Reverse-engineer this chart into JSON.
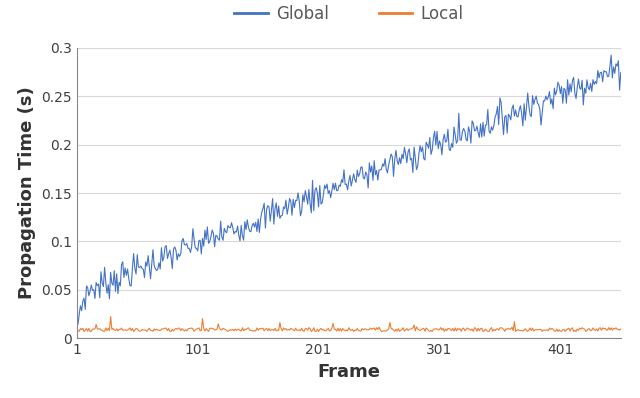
{
  "title": "",
  "xlabel": "Frame",
  "ylabel": "Propagation Time (s)",
  "xlim": [
    1,
    451
  ],
  "ylim": [
    0,
    0.3
  ],
  "yticks": [
    0,
    0.05,
    0.1,
    0.15,
    0.2,
    0.25,
    0.3
  ],
  "xticks": [
    1,
    101,
    201,
    301,
    401
  ],
  "xticklabels": [
    "1",
    "101",
    "201",
    "301",
    "401"
  ],
  "global_color": "#4472C4",
  "local_color": "#ED7D31",
  "legend_labels": [
    "Global",
    "Local"
  ],
  "legend_text_color": "#595959",
  "n_frames": 451,
  "global_slope": 0.00052,
  "global_noise_scale": 0.008,
  "global_initial_curve_end": 20,
  "global_initial_curve_val": 0.055,
  "local_base": 0.007,
  "local_noise_scale": 0.004,
  "local_spike_prob": 0.04,
  "local_spike_max": 0.012,
  "background_color": "#ffffff",
  "grid_color": "#d9d9d9",
  "legend_fontsize": 12,
  "axis_label_fontsize": 13,
  "tick_fontsize": 10,
  "figsize": [
    6.4,
    3.98
  ],
  "dpi": 100
}
